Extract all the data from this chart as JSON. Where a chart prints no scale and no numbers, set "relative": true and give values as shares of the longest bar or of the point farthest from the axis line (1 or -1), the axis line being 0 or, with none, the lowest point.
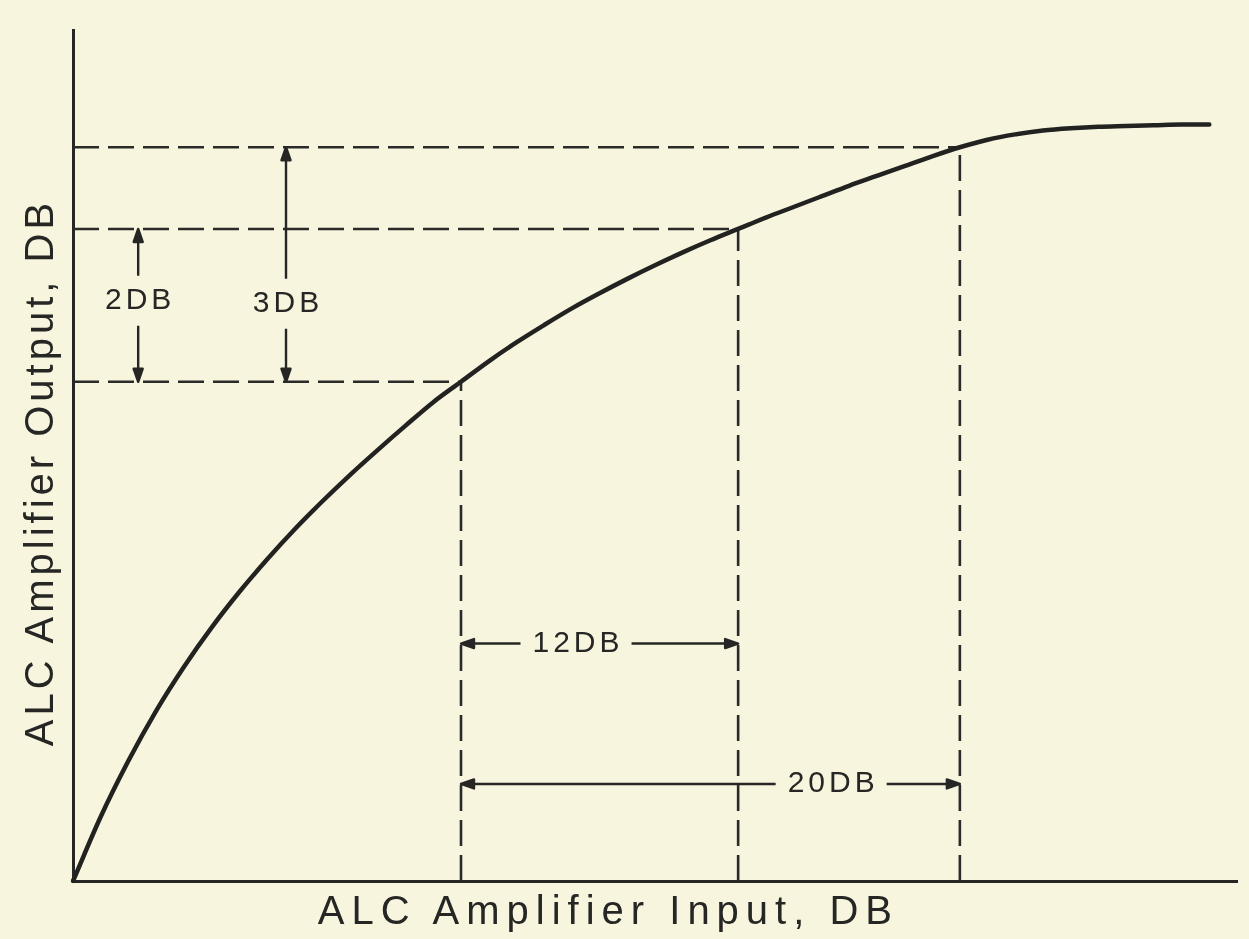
{
  "chart_data": {
    "type": "line",
    "xlabel": "ALC Amplifier Input, DB",
    "ylabel": "ALC Amplifier Output, DB",
    "relative": true,
    "tick_labels": false,
    "marker": "none",
    "line_style": "solid",
    "color": "#222220",
    "categories": [
      null,
      null,
      null,
      null,
      null,
      null,
      null,
      null,
      null,
      null,
      null,
      null,
      null,
      null,
      null,
      null,
      null,
      null,
      null,
      null,
      null,
      null,
      null,
      null,
      null,
      null,
      null,
      null,
      null,
      null,
      null,
      null,
      null,
      null,
      null,
      null,
      null,
      null,
      null,
      null,
      null,
      null,
      null
    ],
    "values": [
      0,
      0.085,
      0.159,
      0.225,
      0.283,
      0.335,
      0.382,
      0.425,
      0.465,
      0.502,
      0.537,
      0.57,
      0.602,
      0.633,
      0.66,
      0.687,
      0.712,
      0.735,
      0.757,
      0.777,
      0.796,
      0.814,
      0.831,
      0.847,
      0.862,
      0.877,
      0.891,
      0.905,
      0.919,
      0.932,
      0.945,
      0.958,
      0.97,
      0.98,
      0.987,
      0.992,
      0.995,
      0.997,
      0.998,
      0.999,
      1,
      1,
      null
    ],
    "ref_lines": [
      {
        "axis": "y",
        "value": 0.66,
        "color": "#2a2a28",
        "line_style": "dashed"
      },
      {
        "axis": "y",
        "value": 0.862,
        "color": "#2a2a28",
        "line_style": "dashed"
      },
      {
        "axis": "y",
        "value": 0.97,
        "color": "#2a2a28",
        "line_style": "dashed"
      }
    ],
    "annotations": [
      "2DB",
      "3DB",
      "12DB",
      "20DB"
    ]
  }
}
